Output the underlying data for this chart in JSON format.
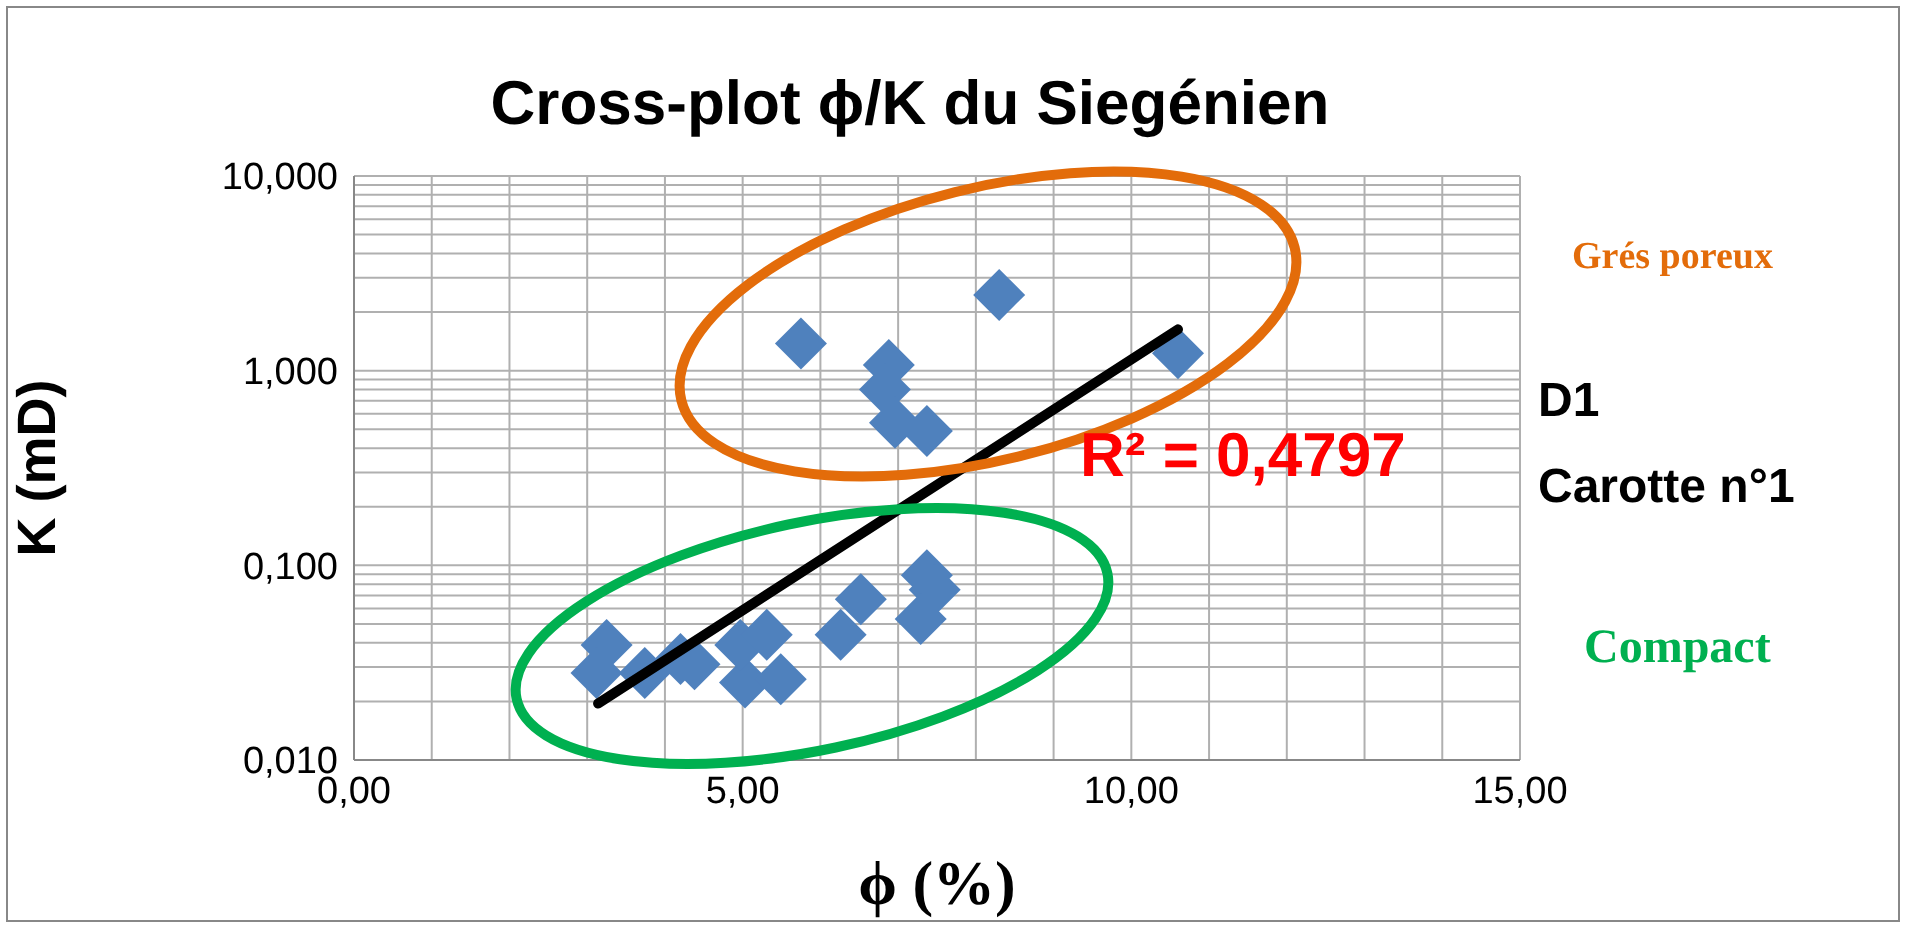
{
  "chart_data": {
    "type": "scatter",
    "title": "Cross-plot ϕ/K du Siegénien",
    "xlabel": "ϕ (%)",
    "ylabel": "K (mD)",
    "log": "y",
    "grid": true,
    "marker": "diamond",
    "xlim": [
      0,
      15
    ],
    "ylim": [
      0.01,
      10
    ],
    "xticks": [
      {
        "value": 0,
        "label": "0,00"
      },
      {
        "value": 1,
        "label": null
      },
      {
        "value": 2,
        "label": null
      },
      {
        "value": 3,
        "label": null
      },
      {
        "value": 4,
        "label": null
      },
      {
        "value": 5,
        "label": "5,00"
      },
      {
        "value": 6,
        "label": null
      },
      {
        "value": 7,
        "label": null
      },
      {
        "value": 8,
        "label": null
      },
      {
        "value": 9,
        "label": null
      },
      {
        "value": 10,
        "label": "10,00"
      },
      {
        "value": 11,
        "label": null
      },
      {
        "value": 12,
        "label": null
      },
      {
        "value": 13,
        "label": null
      },
      {
        "value": 14,
        "label": null
      },
      {
        "value": 15,
        "label": "15,00"
      }
    ],
    "yticks": [
      {
        "value": 0.01,
        "label": "0,010"
      },
      {
        "value": 0.02,
        "label": null
      },
      {
        "value": 0.03,
        "label": null
      },
      {
        "value": 0.04,
        "label": null
      },
      {
        "value": 0.05,
        "label": null
      },
      {
        "value": 0.06,
        "label": null
      },
      {
        "value": 0.07,
        "label": null
      },
      {
        "value": 0.08,
        "label": null
      },
      {
        "value": 0.09,
        "label": null
      },
      {
        "value": 0.1,
        "label": "0,100"
      },
      {
        "value": 0.2,
        "label": null
      },
      {
        "value": 0.3,
        "label": null
      },
      {
        "value": 0.4,
        "label": null
      },
      {
        "value": 0.5,
        "label": null
      },
      {
        "value": 0.6,
        "label": null
      },
      {
        "value": 0.7,
        "label": null
      },
      {
        "value": 0.8,
        "label": null
      },
      {
        "value": 0.9,
        "label": null
      },
      {
        "value": 1,
        "label": "1,000"
      },
      {
        "value": 2,
        "label": null
      },
      {
        "value": 3,
        "label": null
      },
      {
        "value": 4,
        "label": null
      },
      {
        "value": 5,
        "label": null
      },
      {
        "value": 6,
        "label": null
      },
      {
        "value": 7,
        "label": null
      },
      {
        "value": 8,
        "label": null
      },
      {
        "value": 9,
        "label": null
      },
      {
        "value": 10,
        "label": "10,000"
      }
    ],
    "series": [
      {
        "color": "#4f81bd",
        "x": [
          5.75,
          8.3,
          6.88,
          6.83,
          6.96,
          7.37,
          10.6,
          3.25,
          3.12,
          3.74,
          4.2,
          4.38,
          5.03,
          4.97,
          5.31,
          5.49,
          6.26,
          6.52,
          7.37,
          7.47,
          7.29
        ],
        "values": [
          1.38,
          2.45,
          1.07,
          0.8,
          0.54,
          0.49,
          1.23,
          0.039,
          0.028,
          0.028,
          0.033,
          0.031,
          0.025,
          0.039,
          0.044,
          0.026,
          0.044,
          0.067,
          0.089,
          0.075,
          0.053
        ]
      },
      {
        "type": "line",
        "marker": "none",
        "color": "#000000",
        "x": [
          3.14,
          10.6
        ],
        "values": [
          0.0195,
          1.63
        ]
      }
    ],
    "annotations": [
      "R² = 0,4797",
      "Grés poreux",
      "D1",
      "Carotte n°1",
      "Compact"
    ]
  }
}
